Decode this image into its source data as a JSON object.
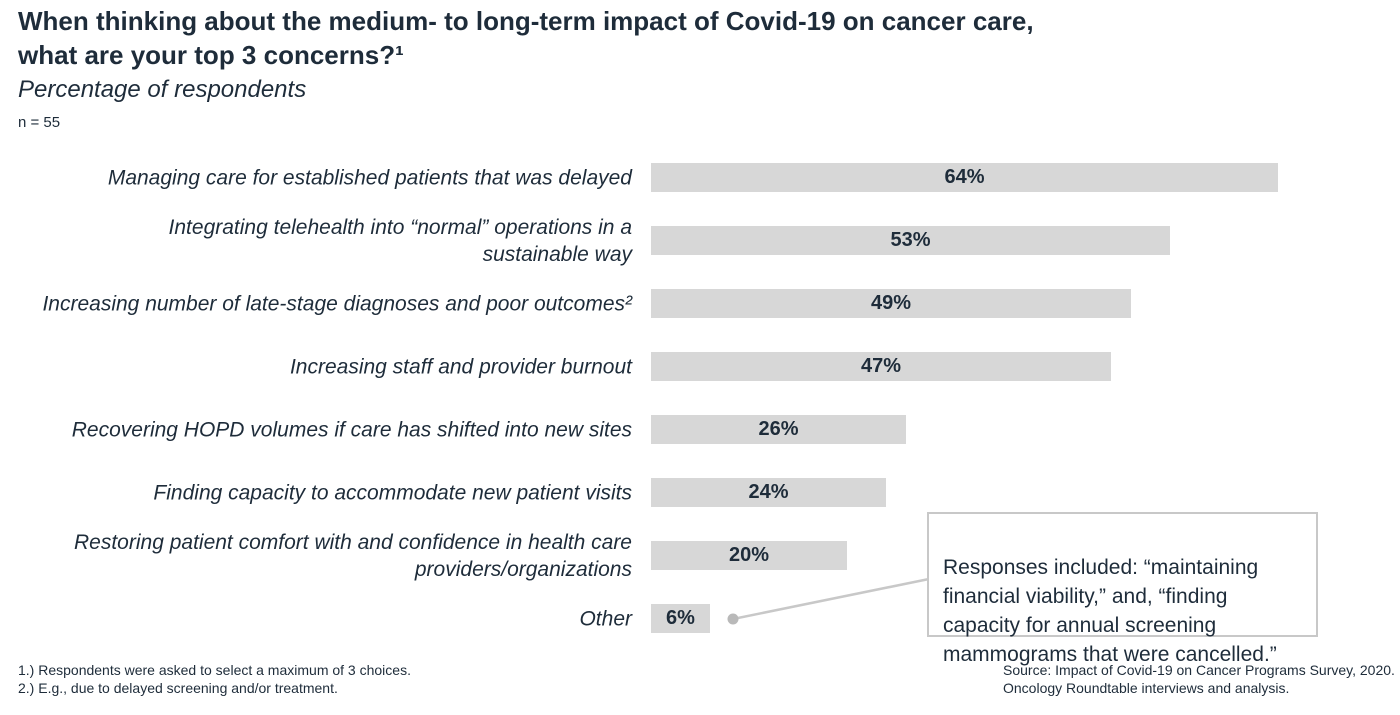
{
  "page": {
    "title": "When thinking about the medium- to long-term impact of Covid-19 on cancer care,\nwhat are your top 3 concerns?¹",
    "subtitle": "Percentage of respondents",
    "sample_size": "n = 55"
  },
  "chart_data": {
    "type": "bar",
    "orientation": "horizontal",
    "title": "When thinking about the medium- to long-term impact of Covid-19 on cancer care, what are your top 3 concerns?¹",
    "xlabel": "Percentage of respondents",
    "xlim": [
      0,
      66
    ],
    "grid": false,
    "legend": "none",
    "bar_color": "#d7d7d7",
    "text_color": "#1e2c3a",
    "categories": [
      "Managing care for established patients that was delayed",
      "Integrating telehealth into “normal” operations in a\nsustainable way",
      "Increasing number of late-stage diagnoses and poor outcomes²",
      "Increasing staff and provider burnout",
      "Recovering HOPD volumes if care has shifted into new sites",
      "Finding capacity to accommodate new patient visits",
      "Restoring patient comfort with and confidence in health care\nproviders/organizations",
      "Other"
    ],
    "values": [
      64,
      53,
      49,
      47,
      26,
      24,
      20,
      6
    ],
    "value_labels": [
      "64%",
      "53%",
      "49%",
      "47%",
      "26%",
      "24%",
      "20%",
      "6%"
    ]
  },
  "callout": {
    "text": "Responses included: “maintaining\nfinancial viability,” and, “finding\ncapacity for annual screening\nmammograms that were cancelled.”",
    "connects_to": "Other"
  },
  "footnotes": [
    "1.) Respondents were asked to select a maximum of 3 choices.",
    "2.) E.g., due to delayed screening and/or treatment."
  ],
  "source": "Source: Impact of Covid-19 on Cancer Programs Survey, 2020.\nOncology Roundtable interviews and analysis."
}
